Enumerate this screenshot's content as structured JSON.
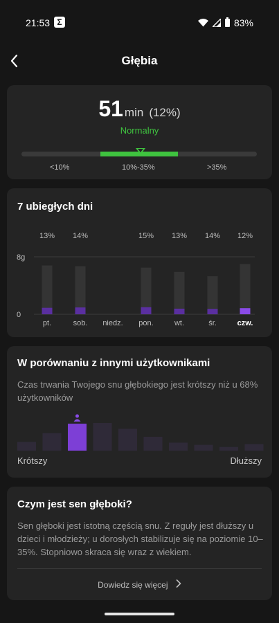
{
  "status_bar": {
    "time": "21:53",
    "app_icon": "Σ",
    "battery": "83%"
  },
  "header": {
    "title": "Głębia",
    "back_icon": "chevron-left-icon"
  },
  "depth_card": {
    "value": "51",
    "unit": "min",
    "percent": "(12%)",
    "status": "Normalny",
    "status_color": "#3fc33f",
    "range_labels": [
      "<10%",
      "10%-35%",
      ">35%"
    ]
  },
  "week_card": {
    "title": "7 ubiegłych dni",
    "accent_color": "#7d3fd6",
    "chart_data": {
      "type": "bar",
      "categories": [
        "pt.",
        "sob.",
        "niedz.",
        "pon.",
        "wt.",
        "śr.",
        "czw."
      ],
      "percent_labels": [
        "13%",
        "14%",
        "",
        "15%",
        "13%",
        "14%",
        "12%"
      ],
      "ytick_labels": [
        "8g",
        "0"
      ],
      "ylim": [
        0,
        8
      ],
      "series": [
        {
          "name": "total",
          "values": [
            6.8,
            6.7,
            0,
            6.5,
            5.9,
            5.3,
            7.0
          ]
        },
        {
          "name": "deep",
          "values": [
            0.9,
            0.95,
            0,
            0.98,
            0.78,
            0.75,
            0.85
          ]
        }
      ],
      "highlight_index": 6
    }
  },
  "compare_card": {
    "title": "W porównaniu z innymi użytkownikami",
    "description": "Czas trwania Twojego snu głębokiego jest krótszy niż u 68% użytkowników",
    "left_label": "Krótszy",
    "right_label": "Dłuższy",
    "user_icon": "person-icon",
    "chart_data": {
      "type": "bar",
      "categories": [
        "1",
        "2",
        "3",
        "4",
        "5",
        "6",
        "7",
        "8",
        "9",
        "10"
      ],
      "values": [
        12,
        24,
        37,
        38,
        30,
        19,
        11,
        8,
        5,
        9
      ],
      "highlight_index": 2
    }
  },
  "info_card": {
    "title": "Czym jest sen głęboki?",
    "text": "Sen głęboki jest istotną częścią snu. Z reguły jest dłuższy u dzieci i młodzieży; u dorosłych stabilizuje się na poziomie 10–35%. Stopniowo skraca się wraz z wiekiem.",
    "more_label": "Dowiedz się więcej"
  }
}
